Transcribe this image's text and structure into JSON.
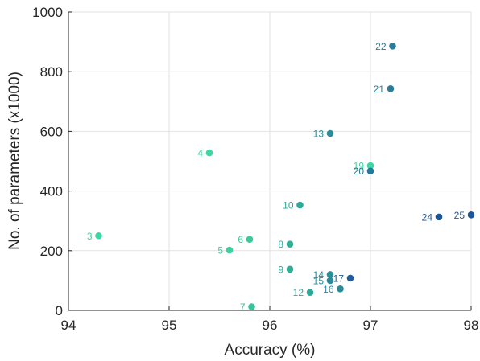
{
  "chart_data": {
    "type": "scatter",
    "title": "",
    "xlabel": "Accuracy (%)",
    "ylabel": "No. of parameters (x1000)",
    "xlim": [
      94,
      98
    ],
    "ylim": [
      0,
      1000
    ],
    "xticks": [
      "94",
      "95",
      "96",
      "97",
      "98"
    ],
    "yticks": [
      "0",
      "200",
      "400",
      "600",
      "800",
      "1000"
    ],
    "grid": true,
    "points": [
      {
        "label": "3",
        "x": 94.3,
        "y": 250,
        "color": "#3ed6a4"
      },
      {
        "label": "4",
        "x": 95.4,
        "y": 528,
        "color": "#3ed6a4"
      },
      {
        "label": "5",
        "x": 95.6,
        "y": 202,
        "color": "#3ecfa0"
      },
      {
        "label": "6",
        "x": 95.8,
        "y": 238,
        "color": "#3cc99c"
      },
      {
        "label": "7",
        "x": 95.82,
        "y": 12,
        "color": "#3bc29a"
      },
      {
        "label": "8",
        "x": 96.2,
        "y": 222,
        "color": "#2fae98"
      },
      {
        "label": "9",
        "x": 96.2,
        "y": 138,
        "color": "#2fae98"
      },
      {
        "label": "10",
        "x": 96.3,
        "y": 353,
        "color": "#2ea897"
      },
      {
        "label": "12",
        "x": 96.4,
        "y": 60,
        "color": "#2ea897"
      },
      {
        "label": "13",
        "x": 96.6,
        "y": 593,
        "color": "#2a8e97"
      },
      {
        "label": "14",
        "x": 96.6,
        "y": 120,
        "color": "#2a8e97"
      },
      {
        "label": "15",
        "x": 96.6,
        "y": 100,
        "color": "#2a8a98"
      },
      {
        "label": "16",
        "x": 96.7,
        "y": 72,
        "color": "#2a8a98"
      },
      {
        "label": "17",
        "x": 96.8,
        "y": 108,
        "color": "#1f5d99"
      },
      {
        "label": "19",
        "x": 97.0,
        "y": 485,
        "color": "#3ed6a4"
      },
      {
        "label": "20",
        "x": 97.0,
        "y": 467,
        "color": "#247899"
      },
      {
        "label": "21",
        "x": 97.2,
        "y": 743,
        "color": "#2a7c98"
      },
      {
        "label": "22",
        "x": 97.22,
        "y": 886,
        "color": "#2a7c98"
      },
      {
        "label": "24",
        "x": 97.68,
        "y": 313,
        "color": "#1d5596"
      },
      {
        "label": "25",
        "x": 98.0,
        "y": 320,
        "color": "#1d5596"
      }
    ]
  }
}
